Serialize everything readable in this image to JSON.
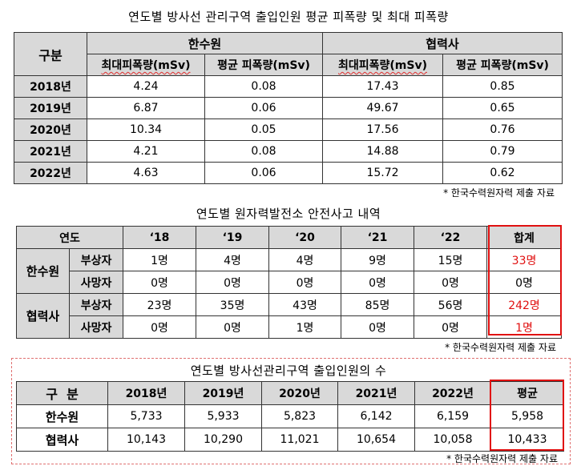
{
  "table1": {
    "title": "연도별 방사선 관리구역 출입인원 평균 피폭량 및 최대 피폭량",
    "header_category": "구분",
    "group_a": "한수원",
    "group_b": "협력사",
    "col_max": "최대피폭량(mSv)",
    "col_avg": "평균 피폭량(mSv)",
    "rows": [
      {
        "year": "2018년",
        "a_max": "4.24",
        "a_avg": "0.08",
        "b_max": "17.43",
        "b_avg": "0.85"
      },
      {
        "year": "2019년",
        "a_max": "6.87",
        "a_avg": "0.06",
        "b_max": "49.67",
        "b_avg": "0.65"
      },
      {
        "year": "2020년",
        "a_max": "10.34",
        "a_avg": "0.05",
        "b_max": "17.56",
        "b_avg": "0.76"
      },
      {
        "year": "2021년",
        "a_max": "4.21",
        "a_avg": "0.08",
        "b_max": "14.88",
        "b_avg": "0.79"
      },
      {
        "year": "2022년",
        "a_max": "4.63",
        "a_avg": "0.06",
        "b_max": "15.72",
        "b_avg": "0.62"
      }
    ],
    "note": "* 한국수력원자력 제출 자료"
  },
  "table2": {
    "title": "연도별 원자력발전소 안전사고 내역",
    "header_year": "연도",
    "years": [
      "‘18",
      "‘19",
      "‘20",
      "‘21",
      "‘22"
    ],
    "header_total": "합계",
    "group_a": "한수원",
    "group_b": "협력사",
    "injured": "부상자",
    "dead": "사망자",
    "a_injured": [
      "1명",
      "4명",
      "4명",
      "9명",
      "15명"
    ],
    "a_injured_total": "33명",
    "a_dead": [
      "0명",
      "0명",
      "0명",
      "0명",
      "0명"
    ],
    "a_dead_total": "0명",
    "b_injured": [
      "23명",
      "35명",
      "43명",
      "85명",
      "56명"
    ],
    "b_injured_total": "242명",
    "b_dead": [
      "0명",
      "0명",
      "1명",
      "0명",
      "0명"
    ],
    "b_dead_total": "1명",
    "note": "* 한국수력원자력 제출 자료"
  },
  "table3": {
    "title": "연도별 방사선관리구역 출입인원의 수",
    "header_category": "구  분",
    "years": [
      "2018년",
      "2019년",
      "2020년",
      "2021년",
      "2022년"
    ],
    "header_avg": "평균",
    "group_a": "한수원",
    "group_b": "협력사",
    "a_values": [
      "5,733",
      "5,933",
      "5,823",
      "6,142",
      "6,159"
    ],
    "a_avg": "5,958",
    "b_values": [
      "10,143",
      "10,290",
      "11,021",
      "10,654",
      "10,058"
    ],
    "b_avg": "10,433",
    "note": "* 한국수력원자력 제출 자료"
  }
}
